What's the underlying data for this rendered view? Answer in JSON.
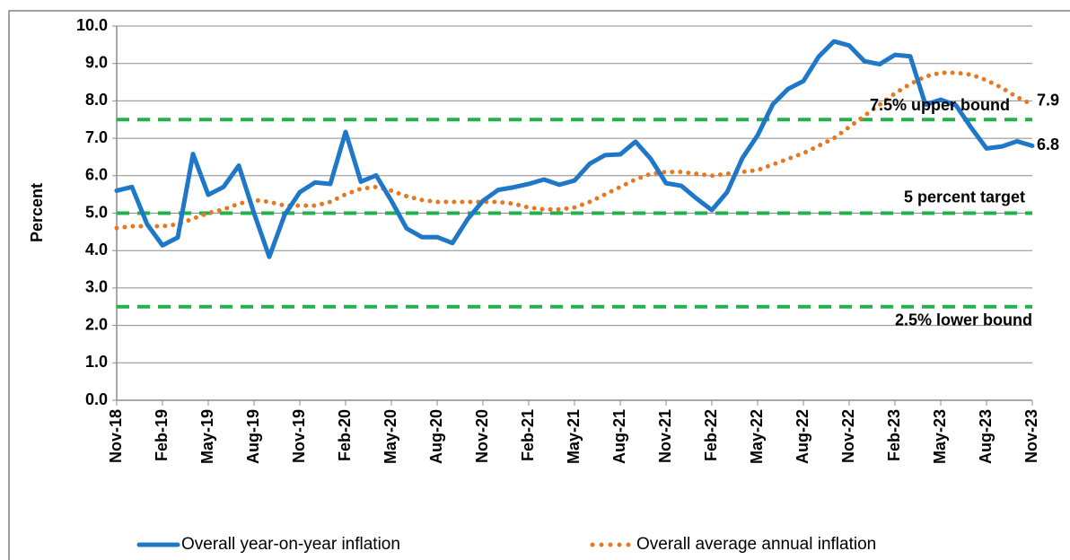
{
  "chart_data": {
    "type": "line",
    "y_label": "Percent",
    "categories": [
      "Nov-18",
      null,
      null,
      "Feb-19",
      null,
      null,
      "May-19",
      null,
      null,
      "Aug-19",
      null,
      null,
      "Nov-19",
      null,
      null,
      "Feb-20",
      null,
      null,
      "May-20",
      null,
      null,
      "Aug-20",
      null,
      null,
      "Nov-20",
      null,
      null,
      "Feb-21",
      null,
      null,
      "May-21",
      null,
      null,
      "Aug-21",
      null,
      null,
      "Nov-21",
      null,
      null,
      "Feb-22",
      null,
      null,
      "May-22",
      null,
      null,
      "Aug-22",
      null,
      null,
      "Nov-22",
      null,
      null,
      "Feb-23",
      null,
      null,
      "May-23",
      null,
      null,
      "Aug-23",
      null,
      null,
      "Nov-23"
    ],
    "series": [
      {
        "name": "Overall year-on-year inflation",
        "color": "#1f77c8",
        "style": "solid",
        "values": [
          5.6,
          5.7,
          4.7,
          4.14,
          4.35,
          6.58,
          5.49,
          5.7,
          6.27,
          5.0,
          3.83,
          4.95,
          5.56,
          5.82,
          5.78,
          7.17,
          5.84,
          6.01,
          5.33,
          4.59,
          4.36,
          4.36,
          4.2,
          4.84,
          5.33,
          5.62,
          5.69,
          5.78,
          5.9,
          5.76,
          5.87,
          6.32,
          6.55,
          6.57,
          6.91,
          6.45,
          5.8,
          5.73,
          5.39,
          5.08,
          5.56,
          6.47,
          7.08,
          7.91,
          8.32,
          8.53,
          9.18,
          9.59,
          9.48,
          9.06,
          8.98,
          9.23,
          9.19,
          7.9,
          8.03,
          7.88,
          7.28,
          6.73,
          6.78,
          6.92,
          6.8
        ]
      },
      {
        "name": "Overall average annual inflation",
        "color": "#e87722",
        "style": "dotted",
        "values": [
          4.6,
          4.65,
          4.65,
          4.65,
          4.7,
          4.85,
          5.0,
          5.1,
          5.25,
          5.35,
          5.3,
          5.2,
          5.2,
          5.2,
          5.3,
          5.5,
          5.65,
          5.7,
          5.6,
          5.45,
          5.35,
          5.3,
          5.3,
          5.3,
          5.3,
          5.3,
          5.25,
          5.15,
          5.1,
          5.1,
          5.15,
          5.3,
          5.5,
          5.7,
          5.9,
          6.05,
          6.1,
          6.1,
          6.05,
          6.0,
          6.05,
          6.1,
          6.15,
          6.3,
          6.45,
          6.6,
          6.8,
          7.0,
          7.3,
          7.6,
          7.9,
          8.2,
          8.45,
          8.65,
          8.75,
          8.75,
          8.7,
          8.55,
          8.35,
          8.1,
          7.9
        ]
      }
    ],
    "reference_lines": [
      {
        "value": 7.5,
        "label": "7.5% upper bound",
        "color": "#22b14c"
      },
      {
        "value": 5.0,
        "label": "5 percent target",
        "color": "#22b14c"
      },
      {
        "value": 2.5,
        "label": "2.5% lower bound",
        "color": "#22b14c"
      }
    ],
    "ylim": [
      0,
      10
    ],
    "yticks": [
      {
        "value": 0,
        "label": "0.0"
      },
      {
        "value": 1,
        "label": "1.0"
      },
      {
        "value": 2,
        "label": "2.0"
      },
      {
        "value": 3,
        "label": "3.0"
      },
      {
        "value": 4,
        "label": "4.0"
      },
      {
        "value": 5,
        "label": "5.0"
      },
      {
        "value": 6,
        "label": "6.0"
      },
      {
        "value": 7,
        "label": "7.0"
      },
      {
        "value": 8,
        "label": "8.0"
      },
      {
        "value": 9,
        "label": "9.0"
      },
      {
        "value": 10,
        "label": "10.0"
      }
    ],
    "grid": true
  }
}
